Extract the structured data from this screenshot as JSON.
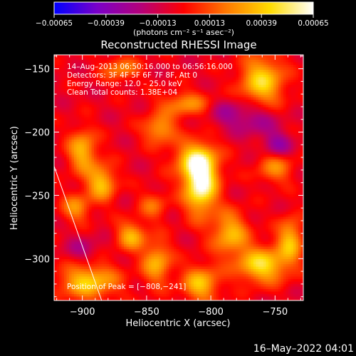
{
  "chart_data": {
    "type": "heatmap",
    "title": "Reconstructed RHESSI Image",
    "xlabel": "Heliocentric X (arcsec)",
    "ylabel": "Heliocentric Y (arcsec)",
    "xlim": [
      -922,
      -728
    ],
    "ylim": [
      -333,
      -139
    ],
    "xticks": [
      -900,
      -850,
      -800,
      -750
    ],
    "yticks": [
      -150,
      -200,
      -250,
      -300
    ],
    "xtick_labels": [
      "−900",
      "−850",
      "−800",
      "−750"
    ],
    "ytick_labels": [
      "−150",
      "−200",
      "−250",
      "−300"
    ],
    "colorbar": {
      "range": [
        -0.00065,
        0.00065
      ],
      "ticks": [
        -0.00065,
        -0.00039,
        -0.00013,
        0.00013,
        0.00039,
        0.00065
      ],
      "tick_labels": [
        "−0.00065",
        "−0.00039",
        "−0.00013",
        "0.00013",
        "0.00039",
        "0.00065"
      ],
      "unit_label": "(photons cm⁻² s⁻¹ asec⁻²)",
      "colormap": [
        "#0000ff",
        "#7a00c8",
        "#b4007a",
        "#ff0000",
        "#ff7a00",
        "#ffdc00",
        "#ffffff"
      ]
    },
    "info_lines": [
      "14–Aug–2013 06:50:16.000 to 06:56:16.000",
      "Detectors: 3F 4F 5F 6F 7F 8F, Att 0",
      "Energy Range: 12.0 – 25.0 keV",
      "Clean    Total counts: 1.38E+04"
    ],
    "peak_label": "Position of Peak = [−808,−241]",
    "peak": {
      "x": -808,
      "y": -241
    },
    "limb_line": {
      "x": [
        -922,
        -885
      ],
      "y": [
        -227,
        -333
      ]
    },
    "blobs": [
      {
        "x": -808,
        "y": -241,
        "sx": 9,
        "sy": 16,
        "v": 0.0007
      },
      {
        "x": -812,
        "y": -222,
        "sx": 12,
        "sy": 10,
        "v": 0.0004
      },
      {
        "x": -760,
        "y": -160,
        "sx": 12,
        "sy": 14,
        "v": 0.00048
      },
      {
        "x": -820,
        "y": -178,
        "sx": 14,
        "sy": 7,
        "v": 0.0003
      },
      {
        "x": -840,
        "y": -198,
        "sx": 9,
        "sy": 8,
        "v": 0.00035
      },
      {
        "x": -900,
        "y": -215,
        "sx": 8,
        "sy": 12,
        "v": 0.0004
      },
      {
        "x": -885,
        "y": -240,
        "sx": 8,
        "sy": 10,
        "v": 0.00042
      },
      {
        "x": -905,
        "y": -260,
        "sx": 8,
        "sy": 8,
        "v": 0.0003
      },
      {
        "x": -862,
        "y": -282,
        "sx": 8,
        "sy": 8,
        "v": 0.00038
      },
      {
        "x": -842,
        "y": -303,
        "sx": 8,
        "sy": 12,
        "v": 0.00038
      },
      {
        "x": -895,
        "y": -318,
        "sx": 16,
        "sy": 10,
        "v": 0.00045
      },
      {
        "x": -785,
        "y": -280,
        "sx": 10,
        "sy": 12,
        "v": 0.0004
      },
      {
        "x": -808,
        "y": -320,
        "sx": 10,
        "sy": 10,
        "v": 0.00042
      },
      {
        "x": -760,
        "y": -305,
        "sx": 14,
        "sy": 10,
        "v": 0.0005
      },
      {
        "x": -738,
        "y": -285,
        "sx": 7,
        "sy": 12,
        "v": 0.0004
      },
      {
        "x": -750,
        "y": -228,
        "sx": 10,
        "sy": 9,
        "v": 0.00028
      },
      {
        "x": -870,
        "y": -150,
        "sx": 10,
        "sy": 7,
        "v": 0.00028
      },
      {
        "x": -845,
        "y": -258,
        "sx": 8,
        "sy": 8,
        "v": 0.00022
      },
      {
        "x": -765,
        "y": -190,
        "sx": 12,
        "sy": 9,
        "v": -0.00022
      },
      {
        "x": -748,
        "y": -210,
        "sx": 8,
        "sy": 7,
        "v": -0.00028
      },
      {
        "x": -788,
        "y": -185,
        "sx": 10,
        "sy": 8,
        "v": -0.00018
      },
      {
        "x": -900,
        "y": -293,
        "sx": 10,
        "sy": 8,
        "v": -0.00015
      }
    ]
  },
  "footer": {
    "timestamp": "16–May–2022 04:01"
  }
}
